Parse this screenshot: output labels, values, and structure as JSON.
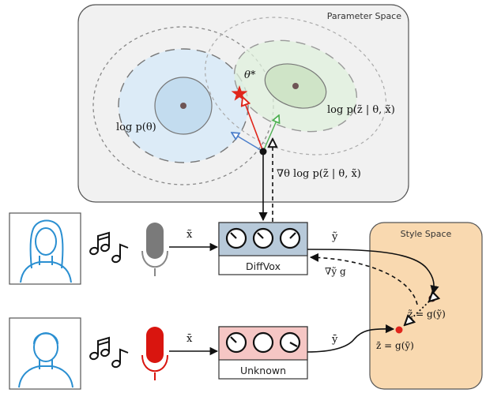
{
  "regions": {
    "parameter_space": "Parameter Space",
    "style_space": "Style Space"
  },
  "modules": {
    "top": "DiffVox",
    "bottom": "Unknown"
  },
  "labels": {
    "theta_star": "θ*",
    "prior": "log p(θ)",
    "likelihood": "log p(z̃ | θ, x̃)",
    "gradient_theta": "∇θ log p(z̃ | θ, x̃)",
    "x_tilde_top": "x̃",
    "x_bar_bottom": "x̄",
    "y_tilde": "ỹ",
    "y_bar": "ȳ",
    "gradient_y": "∇ỹ g",
    "z_tilde": "z̃ = g(ỹ)",
    "z_bar": "z̄ = g(ȳ)"
  },
  "colors": {
    "param_bg": "#f1f1f1",
    "prior_fill": "#dcebf7",
    "likelihood_fill": "#dff0dc",
    "style_bg": "#f9d9b0",
    "diffvox_header": "#b7c9d9",
    "unknown_header": "#f5c6c4",
    "mic_gray": "#7a7a7a",
    "mic_red": "#d9150f",
    "star_red": "#e0251b",
    "person_blue": "#2a8fd1"
  },
  "icons": [
    "person-icon",
    "music-notes-icon",
    "microphone-icon",
    "knob-icon",
    "star-icon"
  ]
}
